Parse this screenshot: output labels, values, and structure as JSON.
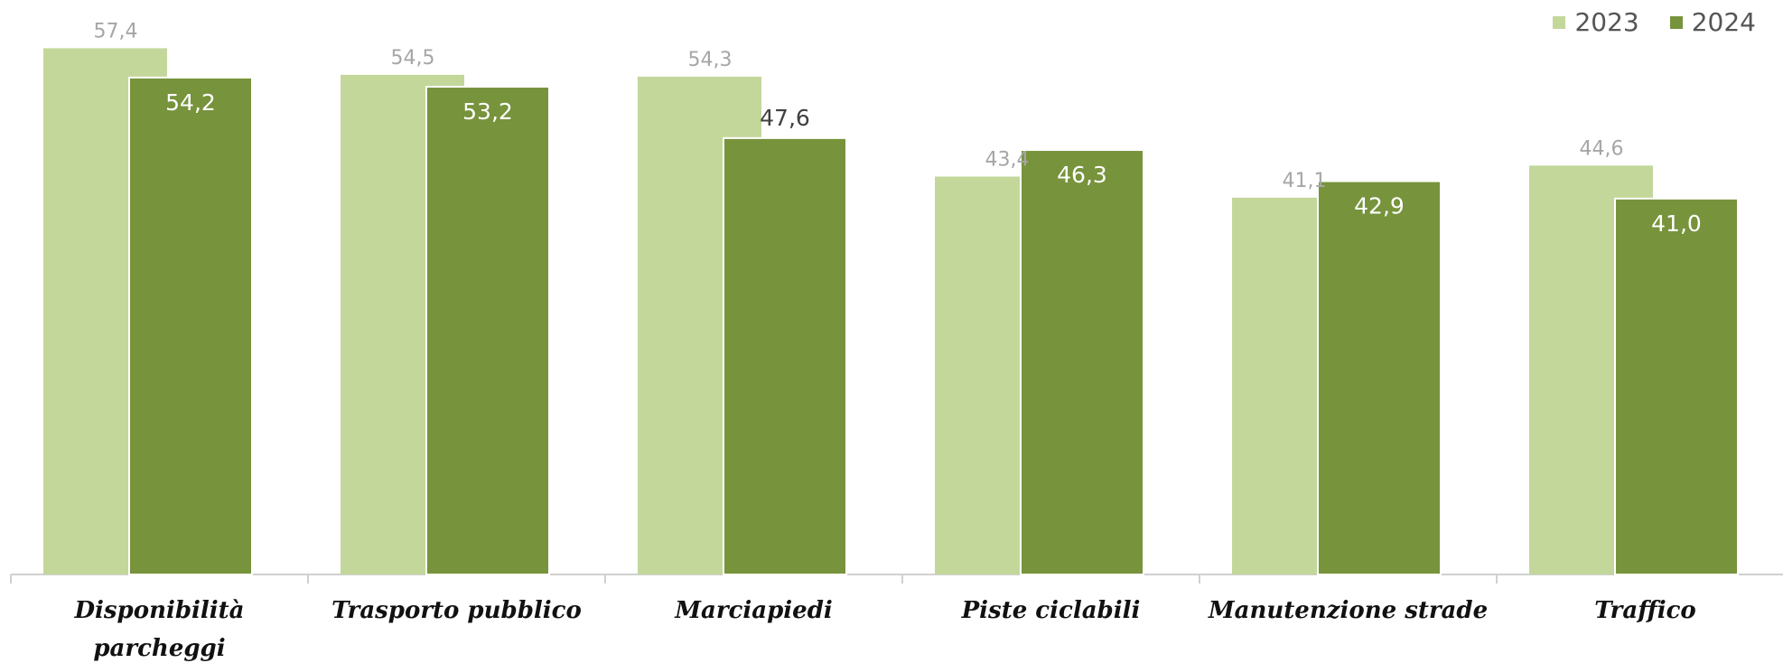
{
  "chart_data": {
    "type": "bar",
    "categories": [
      [
        "Disponibilità",
        "parcheggi"
      ],
      [
        "Trasporto pubblico"
      ],
      [
        "Marciapiedi"
      ],
      [
        "Piste ciclabili"
      ],
      [
        "Manutenzione strade"
      ],
      [
        "Traffico"
      ]
    ],
    "series": [
      {
        "name": "2023",
        "values": [
          57.4,
          54.5,
          54.3,
          43.4,
          41.1,
          44.6
        ],
        "labels": [
          "57,4",
          "54,5",
          "54,3",
          "43,4",
          "41,1",
          "44,6"
        ],
        "color": "#c4d79b"
      },
      {
        "name": "2024",
        "values": [
          54.2,
          53.2,
          47.6,
          46.3,
          42.9,
          41.0
        ],
        "labels": [
          "54,2",
          "53,2",
          "47,6",
          "46,3",
          "42,9",
          "41,0"
        ],
        "color": "#77933c"
      }
    ],
    "title": "",
    "xlabel": "",
    "ylabel": "",
    "ylim": [
      0,
      60
    ],
    "grid": false,
    "legend_position": "top-right"
  }
}
